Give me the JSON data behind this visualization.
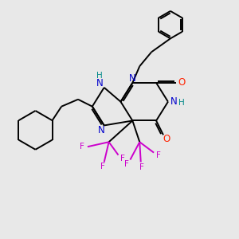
{
  "background_color": "#e8e8e8",
  "bond_color": "#000000",
  "N_color": "#0000cc",
  "O_color": "#ff2200",
  "F_color": "#cc00cc",
  "NH_color": "#008888",
  "figsize": [
    3.0,
    3.0
  ],
  "dpi": 100,
  "xlim": [
    0,
    10
  ],
  "ylim": [
    0,
    10
  ],
  "lw": 1.4
}
